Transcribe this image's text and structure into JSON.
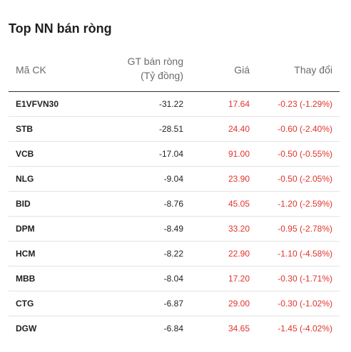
{
  "title": "Top NN bán ròng",
  "colors": {
    "negative": "#e0332c"
  },
  "headers": {
    "code": "Mã CK",
    "value_line1": "GT bán ròng",
    "value_line2": "(Tỷ đồng)",
    "price": "Giá",
    "change": "Thay đổi"
  },
  "rows": [
    {
      "code": "E1VFVN30",
      "value": "-31.22",
      "price": "17.64",
      "change": "-0.23 (-1.29%)"
    },
    {
      "code": "STB",
      "value": "-28.51",
      "price": "24.40",
      "change": "-0.60 (-2.40%)"
    },
    {
      "code": "VCB",
      "value": "-17.04",
      "price": "91.00",
      "change": "-0.50 (-0.55%)"
    },
    {
      "code": "NLG",
      "value": "-9.04",
      "price": "23.90",
      "change": "-0.50 (-2.05%)"
    },
    {
      "code": "BID",
      "value": "-8.76",
      "price": "45.05",
      "change": "-1.20 (-2.59%)"
    },
    {
      "code": "DPM",
      "value": "-8.49",
      "price": "33.20",
      "change": "-0.95 (-2.78%)"
    },
    {
      "code": "HCM",
      "value": "-8.22",
      "price": "22.90",
      "change": "-1.10 (-4.58%)"
    },
    {
      "code": "MBB",
      "value": "-8.04",
      "price": "17.20",
      "change": "-0.30 (-1.71%)"
    },
    {
      "code": "CTG",
      "value": "-6.87",
      "price": "29.00",
      "change": "-0.30 (-1.02%)"
    },
    {
      "code": "DGW",
      "value": "-6.84",
      "price": "34.65",
      "change": "-1.45 (-4.02%)"
    }
  ]
}
